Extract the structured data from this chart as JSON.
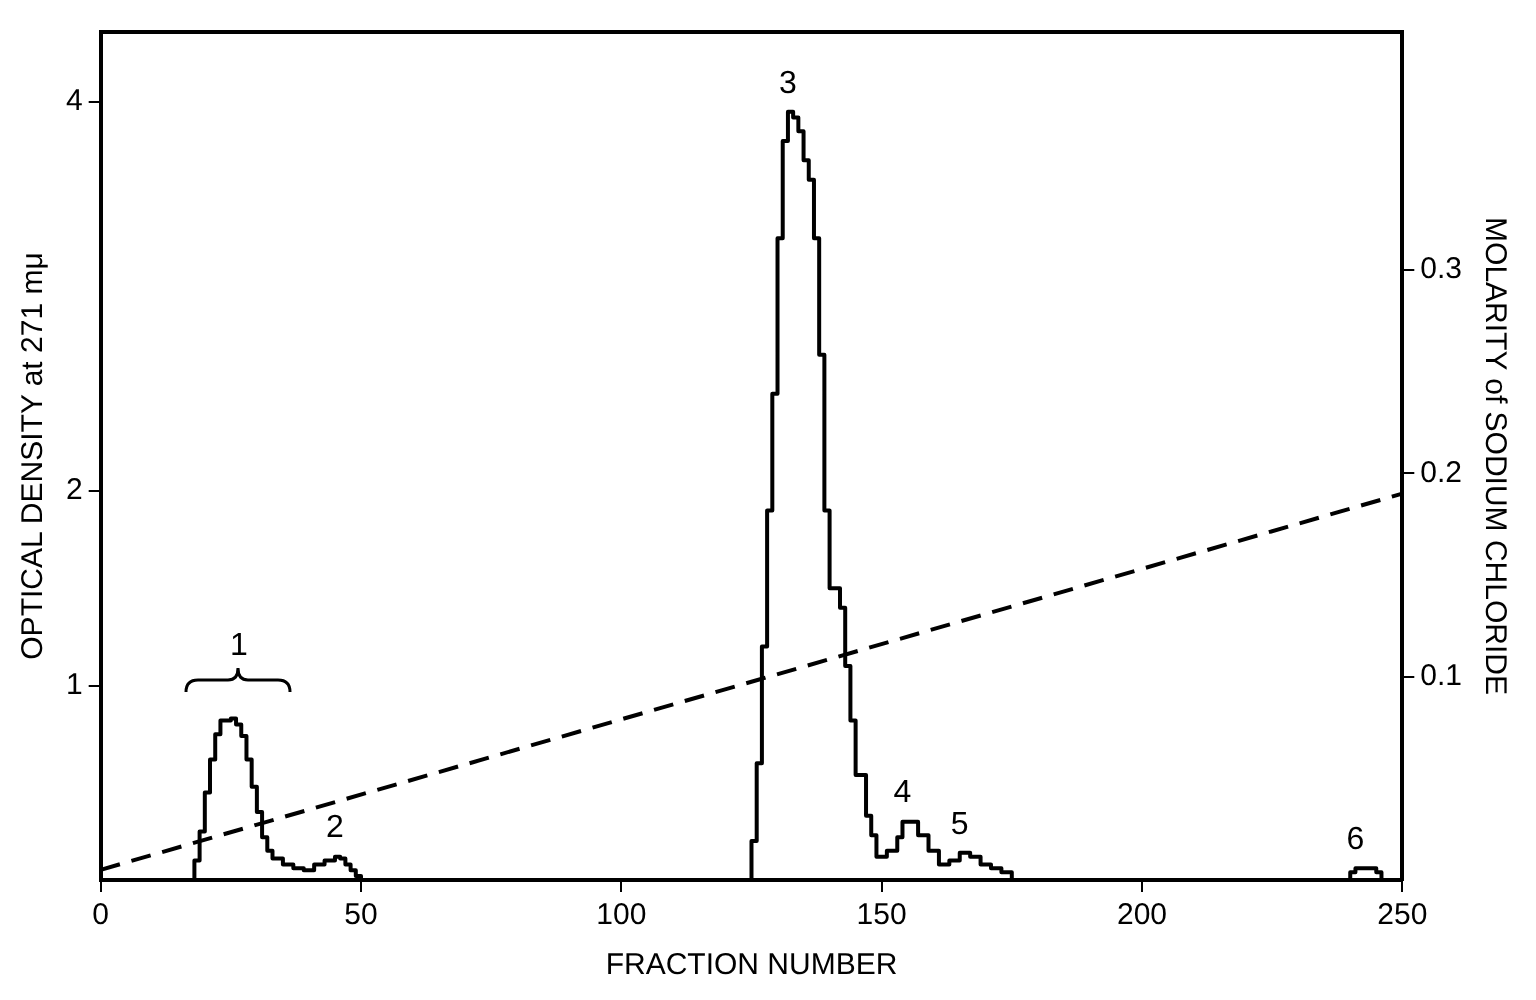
{
  "chart_data": {
    "type": "step",
    "xlabel": "FRACTION NUMBER",
    "ylabel": "OPTICAL DENSITY at 271 mμ",
    "y2label": "MOLARITY of SODIUM CHLORIDE",
    "series": [
      {
        "color": "#000000",
        "x": [
          0,
          17,
          18,
          19,
          20,
          21,
          22,
          23,
          25,
          26,
          27,
          28,
          29,
          30,
          31,
          32,
          33,
          35,
          37,
          39,
          41,
          43,
          45,
          46,
          47,
          48,
          49,
          50,
          124,
          125,
          126,
          127,
          128,
          129,
          130,
          131,
          132,
          133,
          134,
          135,
          136,
          137,
          138,
          139,
          140,
          142,
          143,
          144,
          145,
          147,
          148,
          149,
          151,
          153,
          154,
          156,
          157,
          159,
          161,
          163,
          165,
          167,
          169,
          171,
          173,
          175,
          239,
          240,
          241,
          244,
          245,
          246,
          250
        ],
        "values": [
          0,
          0,
          0.1,
          0.25,
          0.45,
          0.62,
          0.75,
          0.82,
          0.83,
          0.8,
          0.74,
          0.62,
          0.48,
          0.35,
          0.22,
          0.15,
          0.11,
          0.08,
          0.06,
          0.05,
          0.08,
          0.1,
          0.12,
          0.11,
          0.08,
          0.05,
          0.02,
          0,
          0,
          0.2,
          0.6,
          1.2,
          1.9,
          2.5,
          3.3,
          3.8,
          3.95,
          3.92,
          3.85,
          3.7,
          3.6,
          3.3,
          2.7,
          1.9,
          1.5,
          1.4,
          1.1,
          0.82,
          0.54,
          0.33,
          0.23,
          0.12,
          0.15,
          0.22,
          0.3,
          0.3,
          0.23,
          0.15,
          0.08,
          0.1,
          0.14,
          0.12,
          0.08,
          0.06,
          0.04,
          0,
          0,
          0.04,
          0.06,
          0.06,
          0.04,
          0,
          0
        ]
      },
      {
        "type": "line",
        "color": "#000000",
        "axis": "y2",
        "line_style": "dashed",
        "x": [
          0,
          250
        ],
        "values": [
          0.005,
          0.19
        ]
      }
    ],
    "xlim": [
      0,
      250
    ],
    "xticks": [
      0,
      50,
      100,
      150,
      200,
      250
    ],
    "ylim": [
      0,
      4.36
    ],
    "yticks": [
      1,
      2,
      4
    ],
    "y2lim": [
      0,
      0.417
    ],
    "y2ticks": [
      0.1,
      0.2,
      0.3
    ],
    "annotations": [
      {
        "text": "1",
        "x": 25,
        "y": 0.83
      },
      {
        "text": "2",
        "x": 45,
        "y": 0.12
      },
      {
        "text": "3",
        "x": 132,
        "y": 3.95
      },
      {
        "text": "4",
        "x": 154,
        "y": 0.3
      },
      {
        "text": "5",
        "x": 165,
        "y": 0.14
      },
      {
        "text": "6",
        "x": 241,
        "y": 0.06
      }
    ],
    "grid": false,
    "legend": false,
    "marker": "none"
  }
}
